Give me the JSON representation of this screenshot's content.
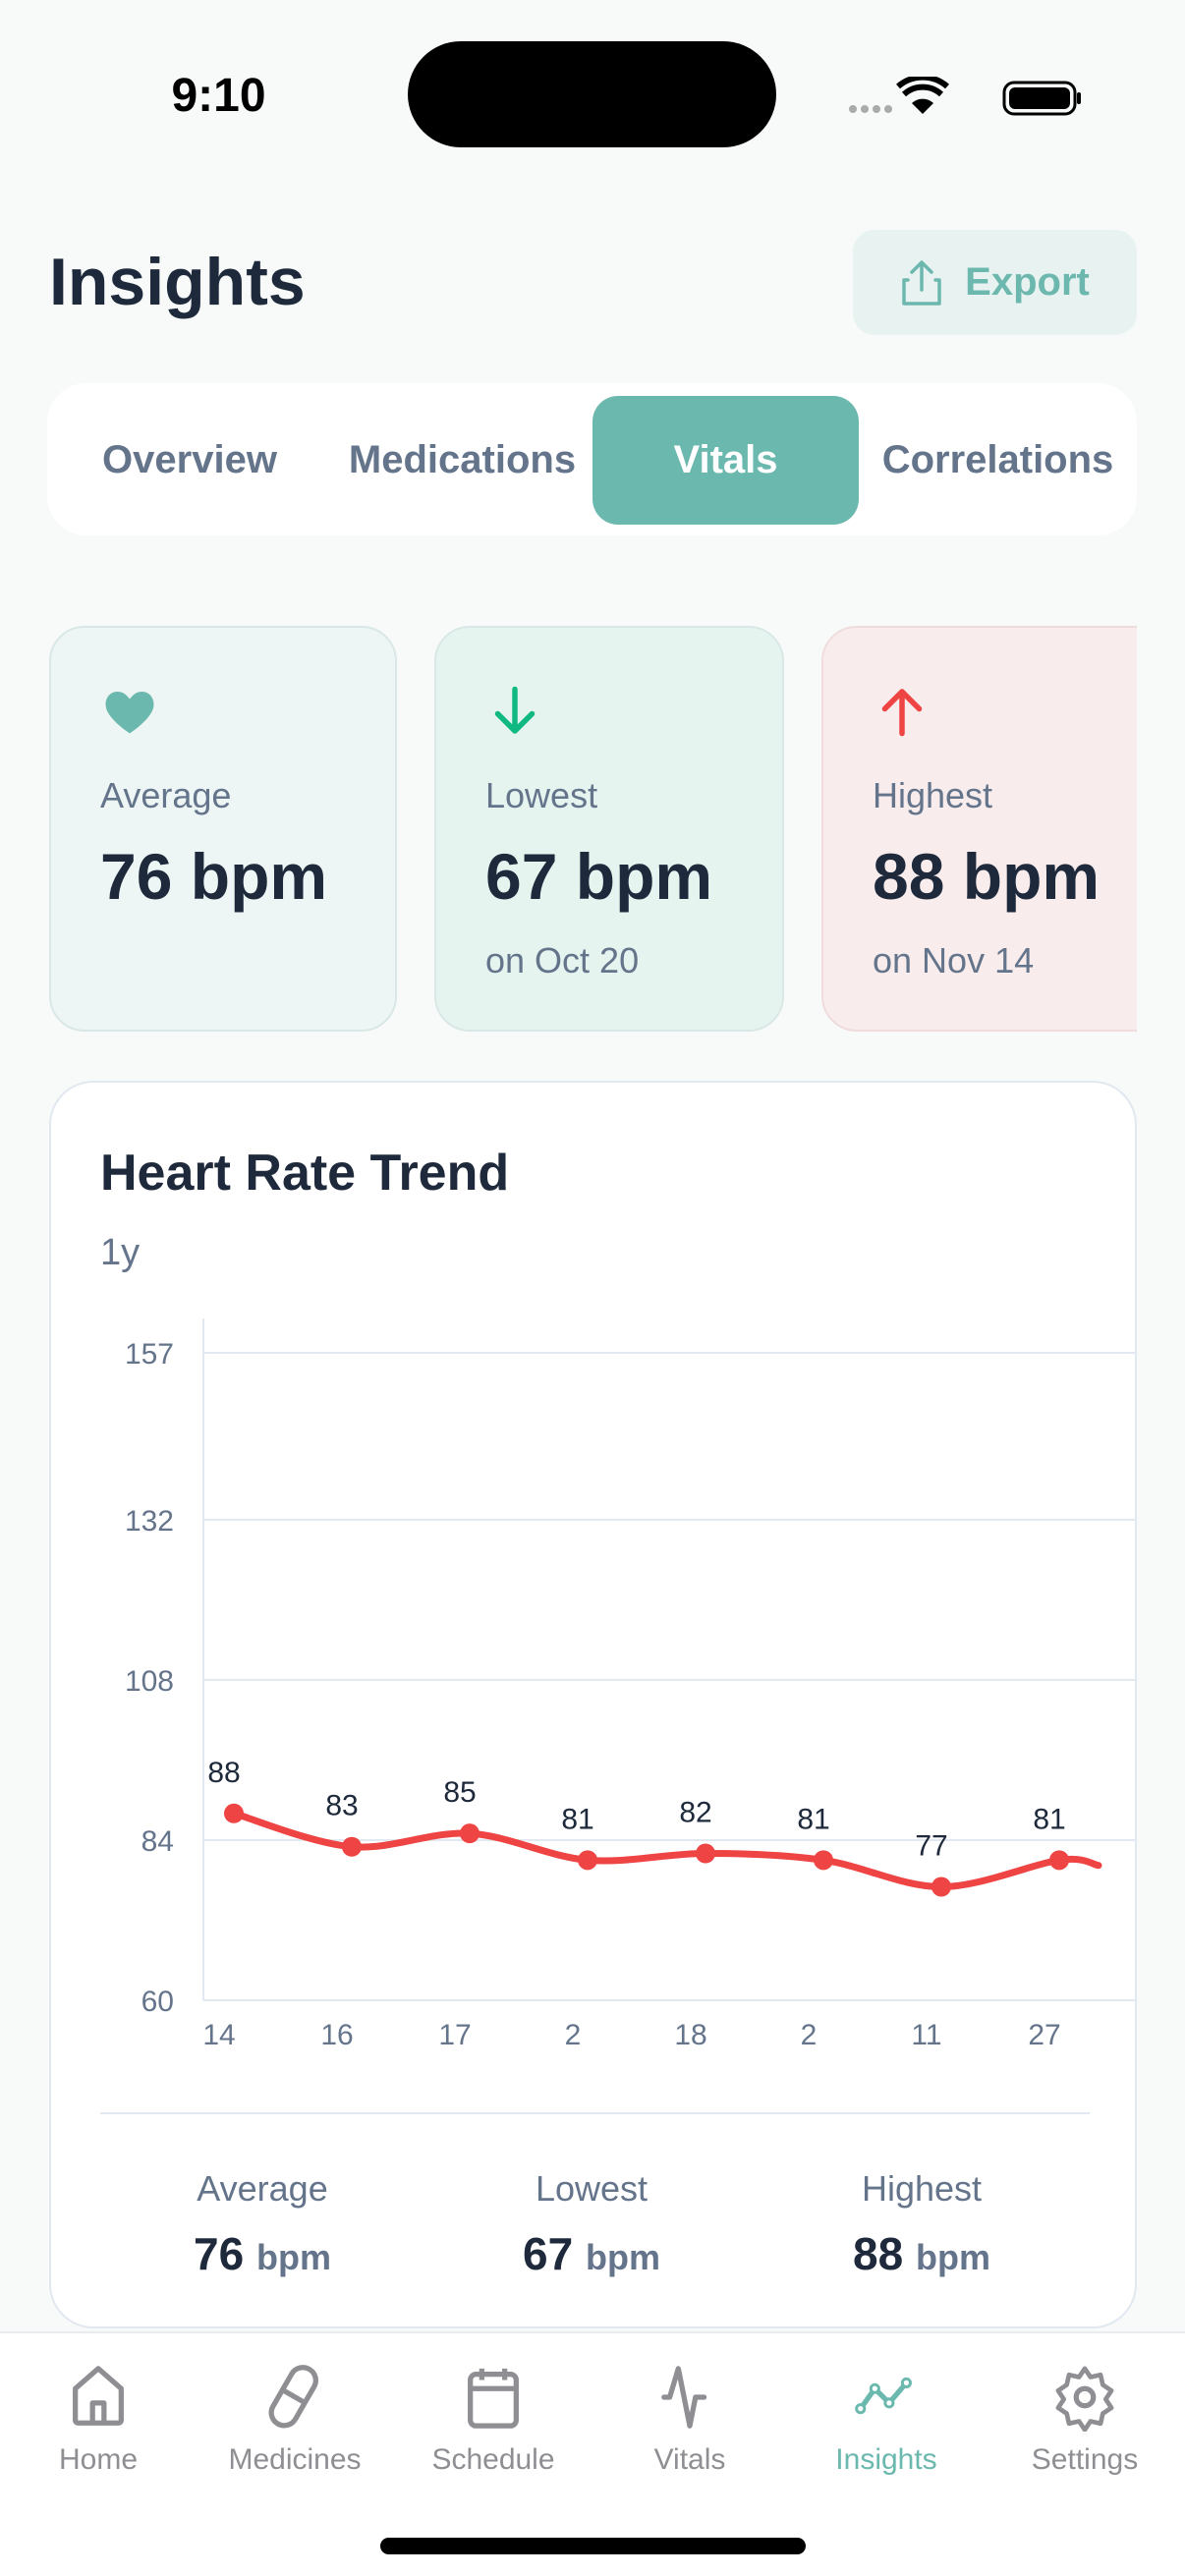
{
  "status_bar": {
    "time": "9:10"
  },
  "header": {
    "title": "Insights",
    "export_label": "Export"
  },
  "tabs": [
    {
      "label": "Overview"
    },
    {
      "label": "Medications"
    },
    {
      "label": "Vitals",
      "active": true
    },
    {
      "label": "Correlations"
    }
  ],
  "stats": [
    {
      "icon": "heart-icon",
      "label": "Average",
      "value": "76 bpm",
      "sub": "",
      "color": "#6bb8ae"
    },
    {
      "icon": "arrow-down-icon",
      "label": "Lowest",
      "value": "67 bpm",
      "sub": "on Oct 20",
      "color": "#10b981"
    },
    {
      "icon": "arrow-up-icon",
      "label": "Highest",
      "value": "88 bpm",
      "sub": "on Nov 14",
      "color": "#ef4444"
    }
  ],
  "chart_card": {
    "title": "Heart Rate Trend",
    "range": "1y"
  },
  "chart_data": {
    "type": "line",
    "title": "Heart Rate Trend",
    "categories": [
      "14",
      "16",
      "17",
      "2",
      "18",
      "2",
      "11",
      "27"
    ],
    "values": [
      88,
      83,
      85,
      81,
      82,
      81,
      77,
      81
    ],
    "y_ticks": [
      157,
      132,
      108,
      84,
      60
    ],
    "ylim": [
      60,
      157
    ],
    "grid": true,
    "data_labels": true,
    "line_color": "#ef4444"
  },
  "summary": [
    {
      "label": "Average",
      "value": "76",
      "unit": "bpm"
    },
    {
      "label": "Lowest",
      "value": "67",
      "unit": "bpm"
    },
    {
      "label": "Highest",
      "value": "88",
      "unit": "bpm"
    }
  ],
  "nav": [
    {
      "label": "Home",
      "icon": "home-icon"
    },
    {
      "label": "Medicines",
      "icon": "pill-icon"
    },
    {
      "label": "Schedule",
      "icon": "calendar-icon"
    },
    {
      "label": "Vitals",
      "icon": "pulse-icon"
    },
    {
      "label": "Insights",
      "icon": "trend-icon",
      "active": true
    },
    {
      "label": "Settings",
      "icon": "gear-icon"
    }
  ],
  "colors": {
    "accent": "#6bb8ae",
    "text": "#1e293b",
    "muted": "#64748b"
  }
}
